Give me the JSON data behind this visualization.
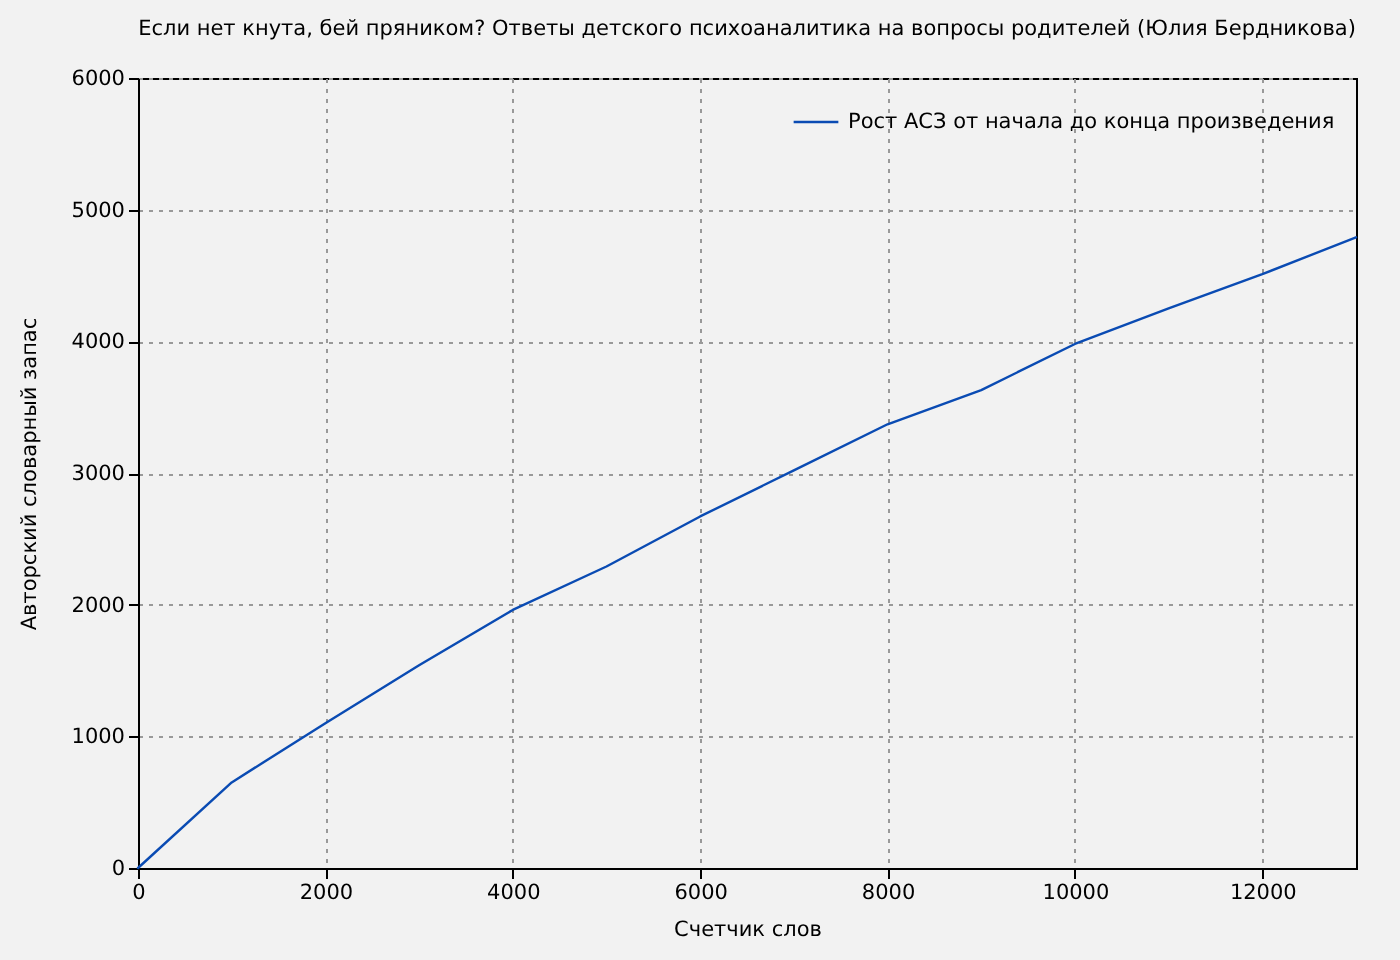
{
  "chart_data": {
    "type": "line",
    "title": "Если нет кнута, бей пряником? Ответы детского психоаналитика на вопросы родителей (Юлия Бердникова)",
    "xlabel": "Счетчик слов",
    "ylabel": "Авторский словарный запас",
    "x": [
      0,
      1000,
      2000,
      3000,
      4000,
      5000,
      6000,
      7000,
      8000,
      9000,
      10000,
      11000,
      12000,
      13000
    ],
    "series": [
      {
        "name": "Рост АСЗ от начала до конца произведения",
        "color": "#0a4bb3",
        "values": [
          0,
          650,
          1100,
          1540,
          1960,
          2290,
          2670,
          3020,
          3370,
          3630,
          3980,
          4250,
          4510,
          4790
        ]
      }
    ],
    "xlim": [
      0,
      13000
    ],
    "ylim": [
      0,
      6000
    ],
    "xticks": [
      0,
      2000,
      4000,
      6000,
      8000,
      10000,
      12000
    ],
    "yticks": [
      0,
      1000,
      2000,
      3000,
      4000,
      5000,
      6000
    ],
    "grid": true,
    "legend": "top right",
    "line_style": "solid"
  }
}
